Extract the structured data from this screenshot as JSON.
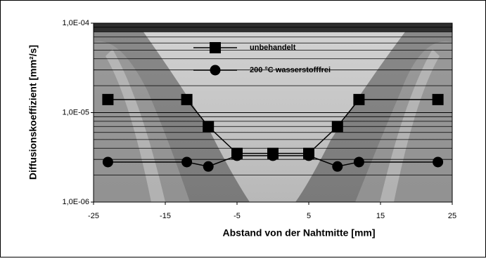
{
  "chart_data": {
    "type": "line",
    "xlabel": "Abstand von der Nahtmitte [mm]",
    "ylabel": "Diffusionskoeffizient [mm²/s]",
    "xlim": [
      -25,
      25
    ],
    "xticks": [
      -25,
      -15,
      -5,
      5,
      15,
      25
    ],
    "ylim": [
      1e-06,
      0.0001
    ],
    "log_y": true,
    "grid": true,
    "yticks": [
      {
        "value": 1e-06,
        "label": "1,0E-06"
      },
      {
        "value": 1e-05,
        "label": "1,0E-05"
      },
      {
        "value": 0.0001,
        "label": "1,0E-04"
      }
    ],
    "series": [
      {
        "name": "unbehandelt",
        "color": "#000000",
        "marker": "square",
        "x": [
          -23,
          -12,
          -9,
          -5,
          0,
          5,
          9,
          12,
          23
        ],
        "values": [
          1.4e-05,
          1.4e-05,
          7e-06,
          3.5e-06,
          3.5e-06,
          3.5e-06,
          7e-06,
          1.4e-05,
          1.4e-05
        ]
      },
      {
        "name": "200 °C wasserstofffrei",
        "color": "#000000",
        "marker": "circle",
        "x": [
          -23,
          -12,
          -9,
          -5,
          0,
          5,
          9,
          12,
          23
        ],
        "values": [
          2.8e-06,
          2.8e-06,
          2.5e-06,
          3.3e-06,
          3.3e-06,
          3.3e-06,
          2.5e-06,
          2.8e-06,
          2.8e-06
        ]
      }
    ]
  }
}
